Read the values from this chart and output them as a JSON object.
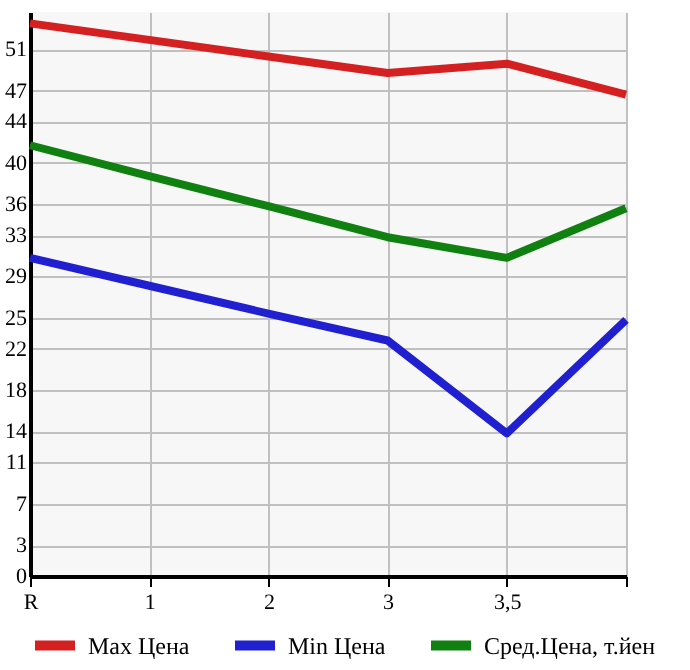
{
  "chart_data": {
    "type": "line",
    "categories": [
      "R",
      "1",
      "2",
      "3",
      "3,5",
      null
    ],
    "series": [
      {
        "name": "Max Цена",
        "color": "#d42020",
        "values": [
          53.5,
          51.9,
          50.3,
          48.7,
          49.6,
          46.6
        ]
      },
      {
        "name": "Min Цена",
        "color": "#2020d0",
        "values": [
          30.8,
          28.1,
          25.4,
          22.8,
          13.8,
          24.8
        ]
      },
      {
        "name": "Сред.Цена, т.йен",
        "color": "#108010",
        "values": [
          41.7,
          38.7,
          35.8,
          32.8,
          30.8,
          35.6
        ]
      }
    ],
    "ylim": [
      0,
      54.6
    ],
    "yticks": [
      0,
      3,
      7,
      11,
      14,
      18,
      22,
      25,
      29,
      33,
      36,
      40,
      44,
      47,
      51
    ],
    "grid": true,
    "legend": "bottom",
    "marker": "none",
    "line_style": "solid"
  }
}
